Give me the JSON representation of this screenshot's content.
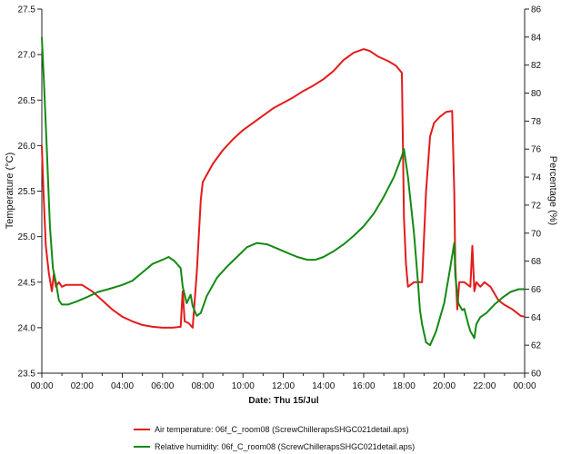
{
  "chart_data": {
    "type": "line",
    "title": "",
    "xlabel": "Date: Thu 15/Jul",
    "ylabel_left": "Temperature (°C)",
    "ylabel_right": "Percentage (%)",
    "ylim_left": [
      23.5,
      27.5
    ],
    "ylim_right": [
      60,
      86
    ],
    "xlim_hours": [
      0,
      24
    ],
    "x_ticks": [
      "00:00",
      "02:00",
      "04:00",
      "06:00",
      "08:00",
      "10:00",
      "12:00",
      "14:00",
      "16:00",
      "18:00",
      "20:00",
      "22:00",
      "00:00"
    ],
    "y_left_ticks": [
      "23.5",
      "24.0",
      "24.5",
      "25.0",
      "25.5",
      "26.0",
      "26.5",
      "27.0",
      "27.5"
    ],
    "y_right_ticks": [
      "60",
      "62",
      "64",
      "66",
      "68",
      "70",
      "72",
      "74",
      "76",
      "78",
      "80",
      "82",
      "84",
      "86"
    ],
    "grid": false,
    "legend_position": "bottom",
    "series": [
      {
        "name": "Air temperature: 06f_C_room08 (ScrewChillerapsSHGC021detail.aps)",
        "axis": "left",
        "color": "#e31b1b",
        "points": [
          [
            0,
            26.0
          ],
          [
            0.1,
            25.4
          ],
          [
            0.2,
            24.9
          ],
          [
            0.35,
            24.6
          ],
          [
            0.5,
            24.4
          ],
          [
            0.6,
            24.6
          ],
          [
            0.7,
            24.45
          ],
          [
            0.85,
            24.5
          ],
          [
            1.0,
            24.45
          ],
          [
            1.2,
            24.47
          ],
          [
            1.5,
            24.47
          ],
          [
            2.0,
            24.47
          ],
          [
            2.5,
            24.4
          ],
          [
            3.0,
            24.3
          ],
          [
            3.5,
            24.2
          ],
          [
            4.0,
            24.12
          ],
          [
            4.5,
            24.07
          ],
          [
            5.0,
            24.03
          ],
          [
            5.5,
            24.01
          ],
          [
            6.0,
            24.0
          ],
          [
            6.5,
            24.0
          ],
          [
            6.9,
            24.01
          ],
          [
            7.0,
            24.4
          ],
          [
            7.1,
            24.07
          ],
          [
            7.3,
            24.05
          ],
          [
            7.5,
            24.0
          ],
          [
            7.7,
            24.6
          ],
          [
            7.9,
            25.4
          ],
          [
            8.0,
            25.6
          ],
          [
            8.5,
            25.8
          ],
          [
            9.0,
            25.95
          ],
          [
            9.5,
            26.07
          ],
          [
            10.0,
            26.17
          ],
          [
            10.5,
            26.25
          ],
          [
            11.0,
            26.33
          ],
          [
            11.5,
            26.41
          ],
          [
            12.0,
            26.47
          ],
          [
            12.5,
            26.53
          ],
          [
            13.0,
            26.6
          ],
          [
            13.5,
            26.66
          ],
          [
            14.0,
            26.73
          ],
          [
            14.5,
            26.82
          ],
          [
            15.0,
            26.94
          ],
          [
            15.5,
            27.02
          ],
          [
            16.0,
            27.06
          ],
          [
            16.3,
            27.04
          ],
          [
            16.7,
            26.98
          ],
          [
            17.2,
            26.93
          ],
          [
            17.6,
            26.88
          ],
          [
            17.9,
            26.8
          ],
          [
            18.0,
            25.2
          ],
          [
            18.1,
            24.7
          ],
          [
            18.2,
            24.45
          ],
          [
            18.5,
            24.5
          ],
          [
            18.9,
            24.5
          ],
          [
            19.1,
            25.5
          ],
          [
            19.3,
            26.1
          ],
          [
            19.5,
            26.25
          ],
          [
            19.8,
            26.32
          ],
          [
            20.1,
            26.37
          ],
          [
            20.4,
            26.38
          ],
          [
            20.5,
            25.5
          ],
          [
            20.55,
            24.7
          ],
          [
            20.65,
            24.2
          ],
          [
            20.75,
            24.5
          ],
          [
            21.0,
            24.5
          ],
          [
            21.3,
            24.45
          ],
          [
            21.4,
            24.9
          ],
          [
            21.5,
            24.4
          ],
          [
            21.6,
            24.5
          ],
          [
            21.8,
            24.45
          ],
          [
            22.0,
            24.5
          ],
          [
            22.3,
            24.45
          ],
          [
            22.7,
            24.3
          ],
          [
            23.0,
            24.25
          ],
          [
            23.4,
            24.2
          ],
          [
            23.8,
            24.13
          ],
          [
            24.0,
            24.12
          ]
        ]
      },
      {
        "name": "Relative humidity: 06f_C_room08 (ScrewChillerapsSHGC021detail.aps)",
        "axis": "right",
        "color": "#138a13",
        "points": [
          [
            0,
            84.0
          ],
          [
            0.1,
            81.0
          ],
          [
            0.25,
            76.0
          ],
          [
            0.4,
            70.5
          ],
          [
            0.55,
            67.5
          ],
          [
            0.7,
            66.5
          ],
          [
            0.85,
            65.2
          ],
          [
            1.0,
            64.9
          ],
          [
            1.3,
            64.9
          ],
          [
            1.7,
            65.1
          ],
          [
            2.2,
            65.4
          ],
          [
            2.8,
            65.8
          ],
          [
            3.3,
            66.0
          ],
          [
            4.0,
            66.3
          ],
          [
            4.5,
            66.6
          ],
          [
            5.0,
            67.2
          ],
          [
            5.5,
            67.8
          ],
          [
            6.0,
            68.1
          ],
          [
            6.3,
            68.3
          ],
          [
            6.6,
            68.0
          ],
          [
            6.9,
            67.5
          ],
          [
            7.0,
            66.2
          ],
          [
            7.2,
            65.0
          ],
          [
            7.4,
            65.6
          ],
          [
            7.5,
            64.8
          ],
          [
            7.7,
            64.1
          ],
          [
            7.9,
            64.3
          ],
          [
            8.2,
            65.5
          ],
          [
            8.7,
            66.8
          ],
          [
            9.2,
            67.6
          ],
          [
            9.7,
            68.3
          ],
          [
            10.2,
            69.0
          ],
          [
            10.7,
            69.3
          ],
          [
            11.2,
            69.2
          ],
          [
            11.7,
            68.9
          ],
          [
            12.2,
            68.6
          ],
          [
            12.7,
            68.3
          ],
          [
            13.2,
            68.1
          ],
          [
            13.6,
            68.1
          ],
          [
            14.0,
            68.3
          ],
          [
            14.5,
            68.7
          ],
          [
            15.0,
            69.2
          ],
          [
            15.5,
            69.8
          ],
          [
            16.0,
            70.5
          ],
          [
            16.5,
            71.4
          ],
          [
            17.0,
            72.6
          ],
          [
            17.5,
            74.0
          ],
          [
            17.9,
            75.5
          ],
          [
            18.0,
            76.0
          ],
          [
            18.2,
            74.0
          ],
          [
            18.5,
            70.0
          ],
          [
            18.7,
            66.5
          ],
          [
            18.8,
            64.5
          ],
          [
            18.9,
            63.5
          ],
          [
            19.1,
            62.2
          ],
          [
            19.3,
            62.0
          ],
          [
            19.6,
            63.0
          ],
          [
            20.0,
            65.0
          ],
          [
            20.3,
            67.5
          ],
          [
            20.5,
            69.3
          ],
          [
            20.55,
            67.0
          ],
          [
            20.7,
            65.0
          ],
          [
            20.9,
            64.5
          ],
          [
            21.0,
            64.6
          ],
          [
            21.2,
            63.5
          ],
          [
            21.3,
            63.0
          ],
          [
            21.5,
            62.5
          ],
          [
            21.6,
            63.5
          ],
          [
            21.8,
            64.0
          ],
          [
            22.1,
            64.3
          ],
          [
            22.5,
            64.9
          ],
          [
            22.9,
            65.4
          ],
          [
            23.3,
            65.8
          ],
          [
            23.7,
            66.0
          ],
          [
            24.0,
            66.0
          ]
        ]
      }
    ]
  }
}
